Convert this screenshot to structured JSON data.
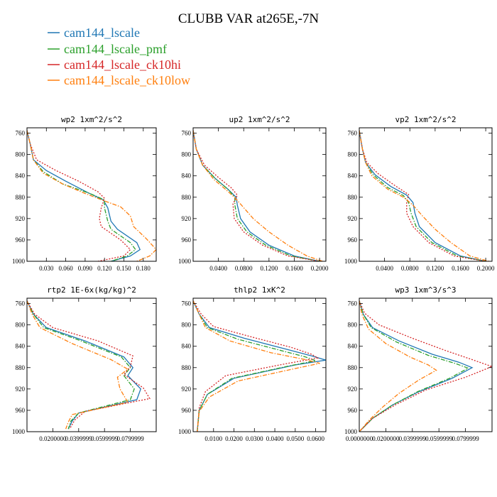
{
  "figure": {
    "title": "CLUBB VAR at265E,-7N"
  },
  "series_legend": [
    {
      "name": "cam144_lscale",
      "color": "#1f77b4",
      "dash": "solid"
    },
    {
      "name": "cam144_lscale_pmf",
      "color": "#2ca02c",
      "dash": "dashdot"
    },
    {
      "name": "cam144_lscale_ck10hi",
      "color": "#d62728",
      "dash": "dotted"
    },
    {
      "name": "cam144_lscale_ck10low",
      "color": "#ff7f0e",
      "dash": "dashdot"
    }
  ],
  "chart_data": [
    {
      "type": "line",
      "title": "wp2  1xm^2/s^2",
      "xlim": [
        0,
        0.2
      ],
      "ylim": [
        1000,
        750
      ],
      "yticks": [
        760,
        800,
        840,
        880,
        920,
        960,
        1000
      ],
      "xticks": [
        0.03,
        0.06,
        0.09,
        0.12,
        0.15,
        0.18
      ],
      "xtick_labels": [
        "0.030",
        "0.060",
        "0.090",
        "0.120",
        "0.150",
        "0.180"
      ],
      "series": [
        {
          "name": "cam144_lscale",
          "x": [
            0.0,
            0.005,
            0.01,
            0.03,
            0.06,
            0.095,
            0.118,
            0.125,
            0.13,
            0.14,
            0.17,
            0.175,
            0.16,
            0.13
          ],
          "y": [
            755,
            780,
            810,
            830,
            850,
            872,
            885,
            900,
            925,
            940,
            965,
            978,
            990,
            1000
          ]
        },
        {
          "name": "cam144_lscale_pmf",
          "x": [
            0.0,
            0.005,
            0.01,
            0.025,
            0.055,
            0.095,
            0.12,
            0.12,
            0.125,
            0.13,
            0.16,
            0.168,
            0.155,
            0.13
          ],
          "y": [
            755,
            780,
            810,
            832,
            855,
            872,
            885,
            900,
            925,
            940,
            965,
            978,
            990,
            1000
          ]
        },
        {
          "name": "cam144_lscale_ck10hi",
          "x": [
            0.0,
            0.005,
            0.015,
            0.045,
            0.08,
            0.11,
            0.12,
            0.115,
            0.112,
            0.115,
            0.145,
            0.16,
            0.15,
            0.11
          ],
          "y": [
            755,
            780,
            810,
            830,
            850,
            870,
            882,
            900,
            920,
            935,
            960,
            978,
            990,
            1000
          ]
        },
        {
          "name": "cam144_lscale_ck10low",
          "x": [
            0.0,
            0.005,
            0.01,
            0.025,
            0.055,
            0.09,
            0.12,
            0.145,
            0.16,
            0.165,
            0.185,
            0.2,
            0.19,
            0.17
          ],
          "y": [
            755,
            780,
            810,
            835,
            855,
            873,
            887,
            898,
            915,
            935,
            958,
            978,
            990,
            1000
          ]
        }
      ]
    },
    {
      "type": "line",
      "title": "up2  1xm^2/s^2",
      "xlim": [
        0,
        0.21
      ],
      "ylim": [
        1000,
        750
      ],
      "yticks": [
        760,
        800,
        840,
        880,
        920,
        960,
        1000
      ],
      "xticks": [
        0.04,
        0.08,
        0.12,
        0.16,
        0.2
      ],
      "xtick_labels": [
        "0.0400",
        "0.0800",
        "0.1200",
        "0.1600",
        "0.2000"
      ],
      "series": [
        {
          "name": "cam144_lscale",
          "x": [
            0.0,
            0.005,
            0.015,
            0.035,
            0.055,
            0.068,
            0.07,
            0.075,
            0.09,
            0.12,
            0.16,
            0.2
          ],
          "y": [
            755,
            790,
            820,
            845,
            865,
            880,
            895,
            920,
            945,
            970,
            990,
            1000
          ]
        },
        {
          "name": "cam144_lscale_pmf",
          "x": [
            0.0,
            0.005,
            0.015,
            0.035,
            0.055,
            0.066,
            0.066,
            0.07,
            0.085,
            0.115,
            0.155,
            0.2
          ],
          "y": [
            755,
            790,
            820,
            845,
            865,
            880,
            895,
            920,
            945,
            970,
            990,
            1000
          ]
        },
        {
          "name": "cam144_lscale_ck10hi",
          "x": [
            0.0,
            0.005,
            0.018,
            0.04,
            0.06,
            0.07,
            0.063,
            0.065,
            0.08,
            0.11,
            0.15,
            0.2
          ],
          "y": [
            755,
            790,
            820,
            843,
            862,
            876,
            893,
            920,
            945,
            970,
            990,
            1000
          ]
        },
        {
          "name": "cam144_lscale_ck10low",
          "x": [
            0.0,
            0.005,
            0.015,
            0.033,
            0.053,
            0.067,
            0.078,
            0.095,
            0.12,
            0.15,
            0.18,
            0.205
          ],
          "y": [
            755,
            790,
            820,
            847,
            867,
            882,
            897,
            920,
            945,
            970,
            990,
            1000
          ]
        }
      ]
    },
    {
      "type": "line",
      "title": "vp2  1xm^2/s^2",
      "xlim": [
        0,
        0.21
      ],
      "ylim": [
        1000,
        750
      ],
      "yticks": [
        760,
        800,
        840,
        880,
        920,
        960,
        1000
      ],
      "xticks": [
        0.04,
        0.08,
        0.12,
        0.16,
        0.2
      ],
      "xtick_labels": [
        "0.0400",
        "0.0800",
        "0.1200",
        "0.1600",
        "0.2000"
      ],
      "series": [
        {
          "name": "cam144_lscale",
          "x": [
            0.0,
            0.005,
            0.01,
            0.025,
            0.05,
            0.075,
            0.085,
            0.088,
            0.095,
            0.12,
            0.16,
            0.2
          ],
          "y": [
            755,
            790,
            815,
            838,
            860,
            876,
            890,
            910,
            935,
            965,
            990,
            1000
          ]
        },
        {
          "name": "cam144_lscale_pmf",
          "x": [
            0.0,
            0.005,
            0.01,
            0.022,
            0.045,
            0.07,
            0.078,
            0.082,
            0.09,
            0.115,
            0.155,
            0.2
          ],
          "y": [
            755,
            790,
            815,
            838,
            862,
            877,
            890,
            910,
            935,
            965,
            990,
            1000
          ]
        },
        {
          "name": "cam144_lscale_ck10hi",
          "x": [
            0.0,
            0.005,
            0.012,
            0.03,
            0.055,
            0.078,
            0.075,
            0.075,
            0.085,
            0.11,
            0.15,
            0.2
          ],
          "y": [
            755,
            790,
            815,
            836,
            857,
            875,
            890,
            910,
            935,
            965,
            990,
            1000
          ]
        },
        {
          "name": "cam144_lscale_ck10low",
          "x": [
            0.0,
            0.005,
            0.01,
            0.02,
            0.045,
            0.07,
            0.085,
            0.1,
            0.12,
            0.145,
            0.175,
            0.205
          ],
          "y": [
            755,
            790,
            815,
            840,
            865,
            880,
            895,
            915,
            940,
            965,
            990,
            1000
          ]
        }
      ]
    },
    {
      "type": "line",
      "title": "rtp2  1E-6x(kg/kg)^2",
      "xlim": [
        0,
        0.1
      ],
      "ylim": [
        1000,
        750
      ],
      "yticks": [
        760,
        800,
        840,
        880,
        920,
        960,
        1000
      ],
      "xticks": [
        0.02,
        0.04,
        0.06,
        0.08
      ],
      "xtick_labels": [
        "0.0200000",
        "0.0399999",
        "0.0599999",
        "0.0799999"
      ],
      "series": [
        {
          "name": "cam144_lscale",
          "x": [
            0.0,
            0.005,
            0.015,
            0.045,
            0.075,
            0.082,
            0.078,
            0.088,
            0.085,
            0.04,
            0.035,
            0.032
          ],
          "y": [
            755,
            780,
            805,
            830,
            860,
            880,
            895,
            920,
            940,
            965,
            980,
            995
          ]
        },
        {
          "name": "cam144_lscale_pmf",
          "x": [
            0.0,
            0.005,
            0.013,
            0.042,
            0.073,
            0.08,
            0.075,
            0.083,
            0.08,
            0.04,
            0.034,
            0.032
          ],
          "y": [
            755,
            780,
            805,
            830,
            860,
            880,
            895,
            920,
            940,
            965,
            980,
            995
          ]
        },
        {
          "name": "cam144_lscale_ck10hi",
          "x": [
            0.0,
            0.006,
            0.02,
            0.055,
            0.082,
            0.08,
            0.075,
            0.09,
            0.095,
            0.045,
            0.037,
            0.033
          ],
          "y": [
            755,
            780,
            805,
            830,
            858,
            878,
            893,
            918,
            938,
            962,
            978,
            995
          ]
        },
        {
          "name": "cam144_lscale_ck10low",
          "x": [
            0.0,
            0.004,
            0.01,
            0.035,
            0.065,
            0.078,
            0.07,
            0.072,
            0.078,
            0.035,
            0.032,
            0.03
          ],
          "y": [
            755,
            780,
            805,
            835,
            865,
            883,
            898,
            920,
            945,
            968,
            982,
            995
          ]
        }
      ]
    },
    {
      "type": "line",
      "title": "thlp2  1xK^2",
      "xlim": [
        0,
        0.065
      ],
      "ylim": [
        1000,
        750
      ],
      "yticks": [
        760,
        800,
        840,
        880,
        920,
        960,
        1000
      ],
      "xticks": [
        0.01,
        0.02,
        0.03,
        0.04,
        0.05,
        0.06
      ],
      "xtick_labels": [
        "0.0100",
        "0.0200",
        "0.0300",
        "0.0400",
        "0.0500",
        "0.0600"
      ],
      "series": [
        {
          "name": "cam144_lscale",
          "x": [
            0.0,
            0.003,
            0.008,
            0.025,
            0.045,
            0.058,
            0.065,
            0.05,
            0.02,
            0.007,
            0.003,
            0.002
          ],
          "y": [
            755,
            780,
            805,
            825,
            845,
            858,
            866,
            875,
            900,
            930,
            960,
            1000
          ]
        },
        {
          "name": "cam144_lscale_pmf",
          "x": [
            0.0,
            0.003,
            0.007,
            0.022,
            0.042,
            0.055,
            0.06,
            0.048,
            0.019,
            0.007,
            0.003,
            0.002
          ],
          "y": [
            755,
            780,
            805,
            827,
            847,
            860,
            867,
            876,
            900,
            930,
            960,
            1000
          ]
        },
        {
          "name": "cam144_lscale_ck10hi",
          "x": [
            0.0,
            0.004,
            0.01,
            0.028,
            0.048,
            0.058,
            0.061,
            0.045,
            0.016,
            0.006,
            0.003,
            0.002
          ],
          "y": [
            755,
            780,
            803,
            822,
            842,
            855,
            862,
            873,
            895,
            925,
            955,
            1000
          ]
        },
        {
          "name": "cam144_lscale_ck10low",
          "x": [
            0.0,
            0.003,
            0.006,
            0.018,
            0.038,
            0.055,
            0.062,
            0.052,
            0.022,
            0.008,
            0.003,
            0.002
          ],
          "y": [
            755,
            780,
            805,
            830,
            852,
            865,
            872,
            880,
            905,
            935,
            962,
            1000
          ]
        }
      ]
    },
    {
      "type": "line",
      "title": "wp3  1xm^3/s^3",
      "xlim": [
        0,
        0.1
      ],
      "ylim": [
        1000,
        750
      ],
      "yticks": [
        760,
        800,
        840,
        880,
        920,
        960,
        1000
      ],
      "xticks": [
        0.0,
        0.02,
        0.04,
        0.06,
        0.08
      ],
      "xtick_labels": [
        "0.0000000",
        "0.0200000",
        "0.0399999",
        "0.0599999",
        "0.0799999"
      ],
      "series": [
        {
          "name": "cam144_lscale",
          "x": [
            0.0,
            0.003,
            0.01,
            0.03,
            0.055,
            0.075,
            0.085,
            0.07,
            0.045,
            0.025,
            0.01,
            0.0
          ],
          "y": [
            755,
            780,
            805,
            830,
            855,
            870,
            880,
            900,
            925,
            950,
            975,
            1000
          ]
        },
        {
          "name": "cam144_lscale_pmf",
          "x": [
            0.0,
            0.003,
            0.009,
            0.028,
            0.052,
            0.072,
            0.082,
            0.068,
            0.044,
            0.025,
            0.01,
            0.0
          ],
          "y": [
            755,
            780,
            805,
            832,
            857,
            872,
            881,
            900,
            925,
            950,
            975,
            1000
          ]
        },
        {
          "name": "cam144_lscale_ck10hi",
          "x": [
            0.0,
            0.004,
            0.015,
            0.04,
            0.065,
            0.085,
            0.1,
            0.08,
            0.05,
            0.027,
            0.01,
            0.0
          ],
          "y": [
            755,
            778,
            800,
            825,
            848,
            865,
            878,
            898,
            922,
            950,
            975,
            1000
          ]
        },
        {
          "name": "cam144_lscale_ck10low",
          "x": [
            0.0,
            0.002,
            0.007,
            0.02,
            0.038,
            0.052,
            0.058,
            0.045,
            0.03,
            0.018,
            0.008,
            0.0
          ],
          "y": [
            755,
            780,
            808,
            835,
            860,
            875,
            885,
            903,
            928,
            953,
            977,
            1000
          ]
        }
      ]
    }
  ]
}
